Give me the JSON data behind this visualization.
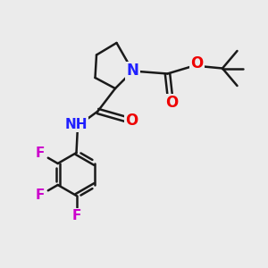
{
  "bg_color": "#ebebeb",
  "bond_color": "#1a1a1a",
  "N_color": "#2020ff",
  "O_color": "#ee0000",
  "F_color": "#cc00cc",
  "H_color": "#808080",
  "linewidth": 1.8,
  "figsize": [
    3.0,
    3.0
  ],
  "dpi": 100,
  "xlim": [
    0,
    10
  ],
  "ylim": [
    0,
    10
  ]
}
